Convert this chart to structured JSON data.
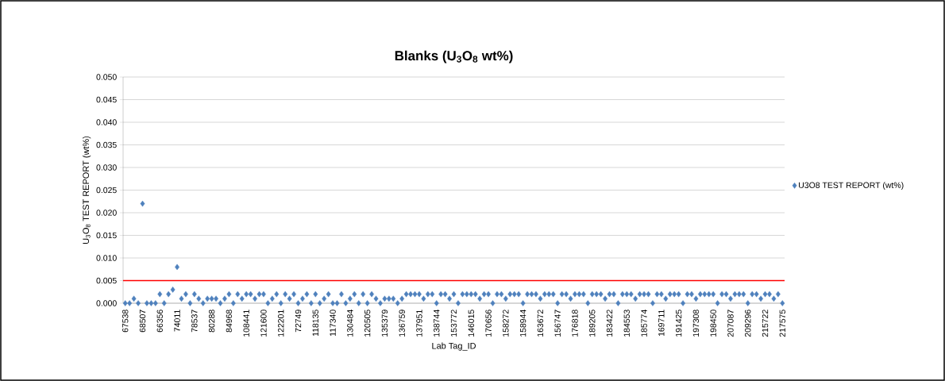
{
  "chart_data": {
    "type": "scatter",
    "title": "Blanks (U$_{3}$O$_{8}$ wt%)",
    "xlabel": "Lab Tag_ID",
    "ylabel": "U$_{3}$O$_{8}$ TEST REPORT (wt%)",
    "categories": [
      "67538",
      null,
      null,
      null,
      "68507",
      null,
      null,
      null,
      "66356",
      null,
      null,
      null,
      "74011",
      null,
      null,
      null,
      "78537",
      null,
      null,
      null,
      "80288",
      null,
      null,
      null,
      "84968",
      null,
      null,
      null,
      "108441",
      null,
      null,
      null,
      "121600",
      null,
      null,
      null,
      "122201",
      null,
      null,
      null,
      "72749",
      null,
      null,
      null,
      "118135",
      null,
      null,
      null,
      "117340",
      null,
      null,
      null,
      "130484",
      null,
      null,
      null,
      "120505",
      null,
      null,
      null,
      "135379",
      null,
      null,
      null,
      "136759",
      null,
      null,
      null,
      "137951",
      null,
      null,
      null,
      "138744",
      null,
      null,
      null,
      "153772",
      null,
      null,
      null,
      "146015",
      null,
      null,
      null,
      "170656",
      null,
      null,
      null,
      "158272",
      null,
      null,
      null,
      "158944",
      null,
      null,
      null,
      "163672",
      null,
      null,
      null,
      "156747",
      null,
      null,
      null,
      "176818",
      null,
      null,
      null,
      "189205",
      null,
      null,
      null,
      "183422",
      null,
      null,
      null,
      "184553",
      null,
      null,
      null,
      "185774",
      null,
      null,
      null,
      "169711",
      null,
      null,
      null,
      "191425",
      null,
      null,
      null,
      "197308",
      null,
      null,
      null,
      "198450",
      null,
      null,
      null,
      "207087",
      null,
      null,
      null,
      "209296",
      null,
      null,
      null,
      "215722",
      null,
      null,
      null,
      "217575"
    ],
    "series": [
      {
        "name": "U3O8 TEST REPORT (wt%)",
        "color": "#4f81bd",
        "values": [
          0,
          0,
          0.001,
          0,
          0.022,
          0,
          0,
          0,
          0.002,
          0,
          0.002,
          0.003,
          0.008,
          0.001,
          0.002,
          0,
          0.002,
          0.001,
          0,
          0.001,
          0.001,
          0.001,
          0,
          0.001,
          0.002,
          0,
          0.002,
          0.001,
          0.002,
          0.002,
          0.001,
          0.002,
          0.002,
          0,
          0.001,
          0.002,
          0,
          0.002,
          0.001,
          0.002,
          0,
          0.001,
          0.002,
          0,
          0.002,
          0,
          0.001,
          0.002,
          0,
          0,
          0.002,
          0,
          0.001,
          0.002,
          0,
          0.002,
          0,
          0.002,
          0.001,
          0,
          0.001,
          0.001,
          0.001,
          0,
          0.001,
          0.002,
          0.002,
          0.002,
          0.002,
          0.001,
          0.002,
          0.002,
          0,
          0.002,
          0.002,
          0.001,
          0.002,
          0,
          0.002,
          0.002,
          0.002,
          0.002,
          0.001,
          0.002,
          0.002,
          0,
          0.002,
          0.002,
          0.001,
          0.002,
          0.002,
          0.002,
          0,
          0.002,
          0.002,
          0.002,
          0.001,
          0.002,
          0.002,
          0.002,
          0,
          0.002,
          0.002,
          0.001,
          0.002,
          0.002,
          0.002,
          0,
          0.002,
          0.002,
          0.002,
          0.001,
          0.002,
          0.002,
          0,
          0.002,
          0.002,
          0.002,
          0.001,
          0.002,
          0.002,
          0.002,
          0,
          0.002,
          0.002,
          0.001,
          0.002,
          0.002,
          0.002,
          0,
          0.002,
          0.002,
          0.001,
          0.002,
          0.002,
          0.002,
          0.002,
          0,
          0.002,
          0.002,
          0.001,
          0.002,
          0.002,
          0.002,
          0,
          0.002,
          0.002,
          0.001,
          0.002,
          0.002,
          0.001,
          0.002,
          0
        ]
      }
    ],
    "ylim": [
      0,
      0.05
    ],
    "yticks": [
      {
        "value": 0,
        "label": "0.000"
      },
      {
        "value": 0.005,
        "label": "0.005"
      },
      {
        "value": 0.01,
        "label": "0.010"
      },
      {
        "value": 0.015,
        "label": "0.015"
      },
      {
        "value": 0.02,
        "label": "0.020"
      },
      {
        "value": 0.025,
        "label": "0.025"
      },
      {
        "value": 0.03,
        "label": "0.030"
      },
      {
        "value": 0.035,
        "label": "0.035"
      },
      {
        "value": 0.04,
        "label": "0.040"
      },
      {
        "value": 0.045,
        "label": "0.045"
      },
      {
        "value": 0.05,
        "label": "0.050"
      }
    ],
    "ref_lines": [
      {
        "axis": "y",
        "value": 0.005,
        "color": "#ff0000"
      }
    ],
    "grid": "y",
    "legend": "right",
    "marker": "diamond"
  }
}
